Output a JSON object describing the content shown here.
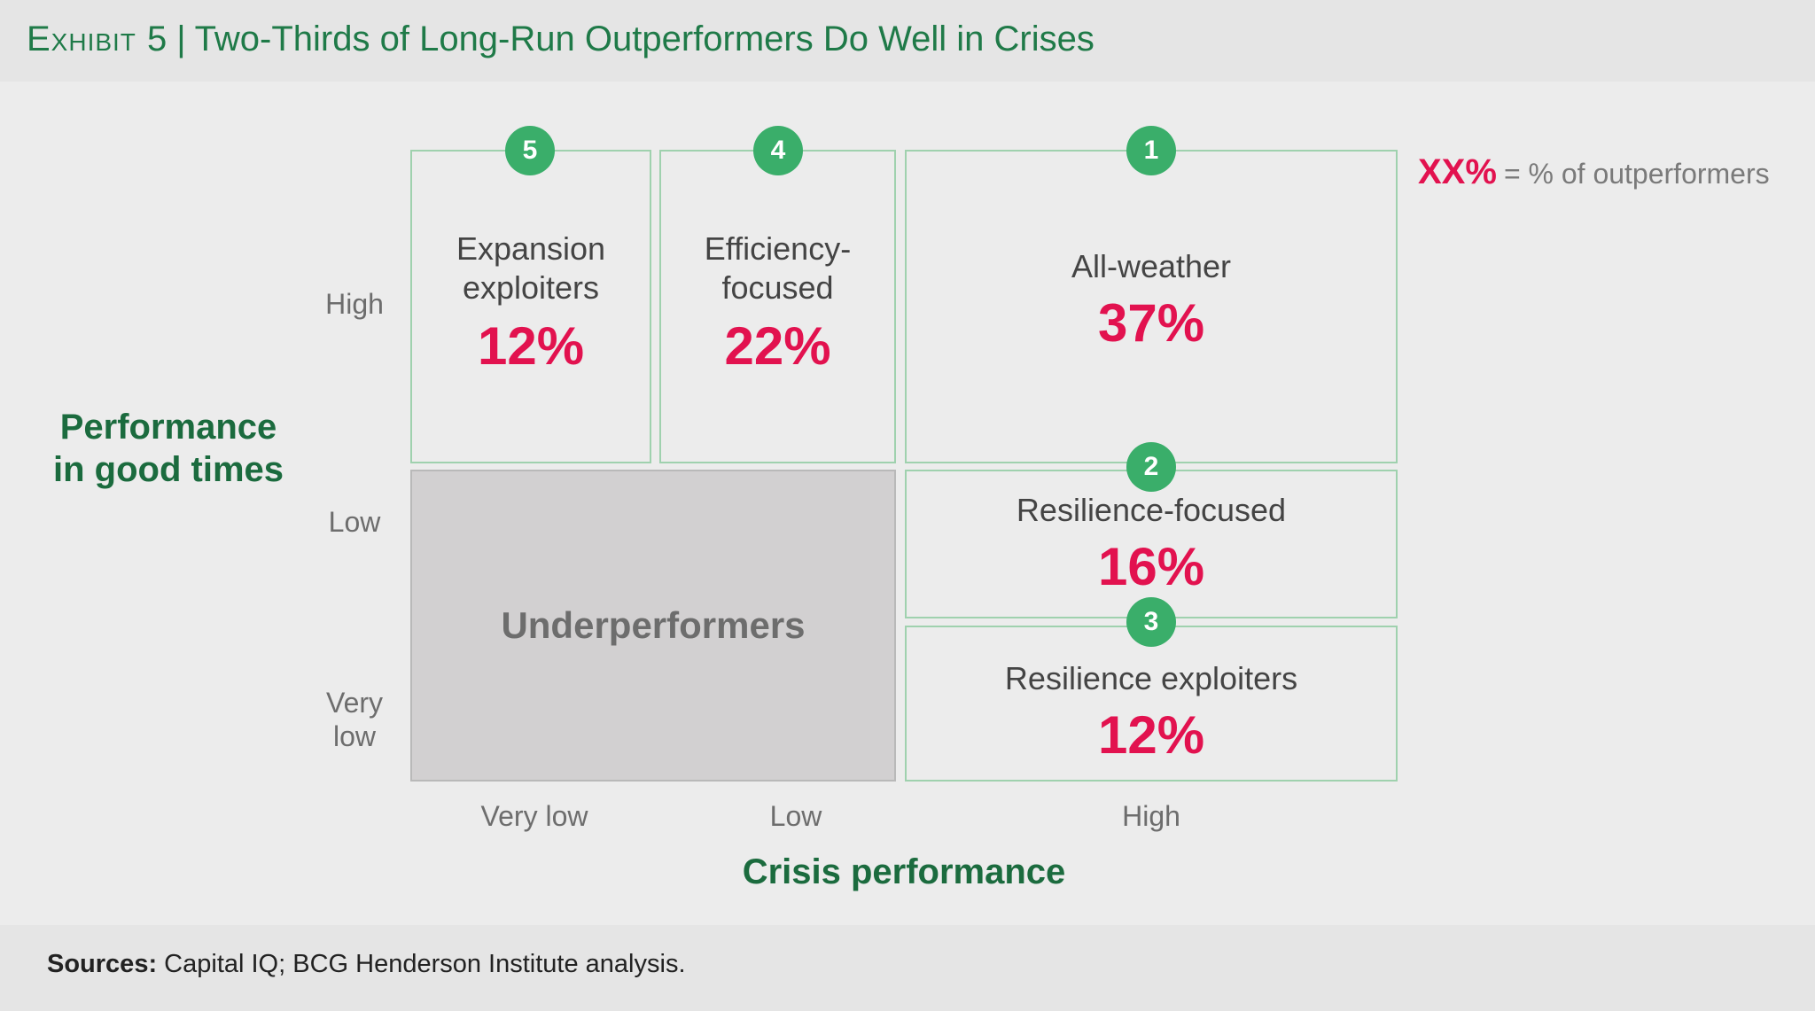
{
  "header": {
    "exhibit": "Exhibit 5",
    "separator": "|",
    "title": "Two-Thirds of Long-Run Outperformers Do Well in Crises"
  },
  "legend": {
    "key": "XX%",
    "desc": "= % of outperformers"
  },
  "y_axis": {
    "title_line1": "Performance",
    "title_line2": "in good times",
    "ticks": {
      "high": "High",
      "low": "Low",
      "very_low_1": "Very",
      "very_low_2": "low"
    }
  },
  "x_axis": {
    "title": "Crisis performance",
    "ticks": {
      "very_low": "Very low",
      "low": "Low",
      "high": "High"
    }
  },
  "cells": {
    "expansion": {
      "badge": "5",
      "label_line1": "Expansion",
      "label_line2": "exploiters",
      "value": "12%"
    },
    "efficiency": {
      "badge": "4",
      "label_line1": "Efficiency-",
      "label_line2": "focused",
      "value": "22%"
    },
    "allweather": {
      "badge": "1",
      "label": "All-weather",
      "value": "37%"
    },
    "resilience_focused": {
      "badge": "2",
      "label": "Resilience-focused",
      "value": "16%"
    },
    "resilience_exploiters": {
      "badge": "3",
      "label": "Resilience exploiters",
      "value": "12%"
    },
    "under": {
      "label": "Underperformers"
    }
  },
  "colors": {
    "title_green": "#1f7a48",
    "accent_pink": "#e2124f",
    "badge_green": "#3aae6a",
    "cell_border": "#9fd1ae",
    "underperformer_fill": "#d2d0d1"
  },
  "footer": {
    "label": "Sources:",
    "text": "Capital IQ; BCG Henderson Institute analysis."
  }
}
